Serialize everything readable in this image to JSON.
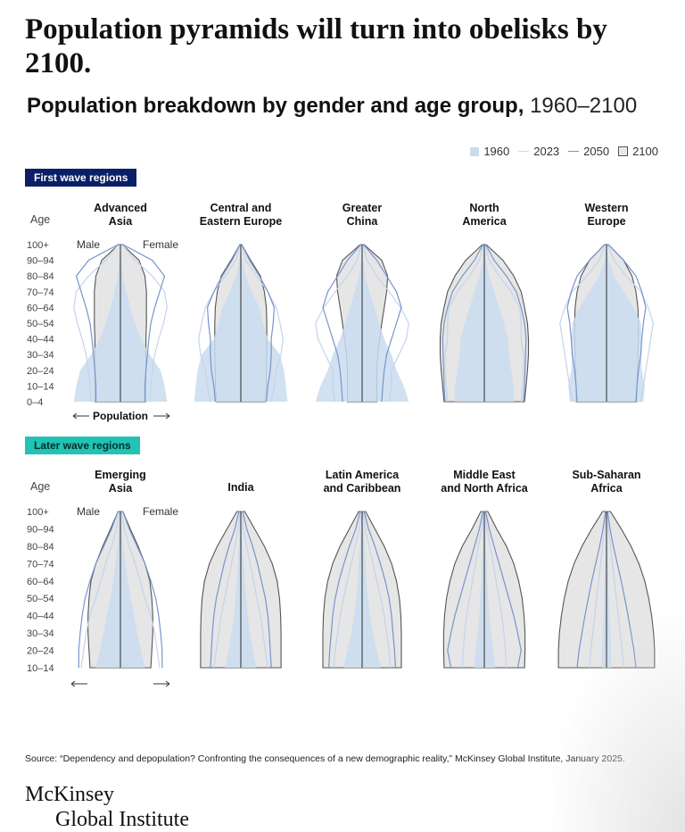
{
  "title": "Population pyramids will turn into obelisks by 2100.",
  "subtitle": {
    "main": "Population breakdown by gender and age group,",
    "range": "1960–2100"
  },
  "legend": [
    {
      "label": "1960",
      "style": "fill"
    },
    {
      "label": "2023",
      "style": "light-line"
    },
    {
      "label": "2050",
      "style": "line"
    },
    {
      "label": "2100",
      "style": "outlined-fill"
    }
  ],
  "colors": {
    "fill_1960": "#c9dcee",
    "line_2023": "#c3d4ec",
    "line_2050": "#7894cc",
    "fill_2100": "#e6e6e6",
    "outline_2100": "#555555",
    "center_axis": "#2b2b2b",
    "first_wave_badge": "#0a1f66",
    "later_wave_badge": "#22c3b4"
  },
  "sections": {
    "first": "First wave regions",
    "later": "Later wave regions"
  },
  "axis": {
    "age_label": "Age",
    "male": "Male",
    "female": "Female",
    "population": "Population"
  },
  "chart_data": {
    "type": "area",
    "description": "Mirrored population pyramids (male left, female right); values are shares of each region's largest bracket, read approximately",
    "age_groups": [
      "0–4",
      "10–14",
      "20–24",
      "30–34",
      "40–44",
      "50–54",
      "60–64",
      "70–74",
      "80–84",
      "90–94",
      "100+"
    ],
    "panels": [
      {
        "wave": "first",
        "region": [
          "Advanced",
          "Asia"
        ],
        "y1960": [
          0.95,
          0.9,
          0.82,
          0.6,
          0.42,
          0.3,
          0.2,
          0.12,
          0.05,
          0.02,
          0
        ],
        "y2023": [
          0.6,
          0.62,
          0.65,
          0.7,
          0.78,
          0.88,
          0.95,
          0.9,
          0.65,
          0.3,
          0.04
        ],
        "y2050": [
          0.5,
          0.5,
          0.52,
          0.55,
          0.58,
          0.62,
          0.7,
          0.8,
          0.9,
          0.65,
          0.05
        ],
        "y2100": [
          0.52,
          0.52,
          0.52,
          0.52,
          0.52,
          0.53,
          0.53,
          0.53,
          0.5,
          0.38,
          0.04
        ]
      },
      {
        "wave": "first",
        "region": [
          "Central and",
          "Eastern Europe"
        ],
        "y1960": [
          0.95,
          0.92,
          0.88,
          0.8,
          0.55,
          0.45,
          0.38,
          0.22,
          0.1,
          0.03,
          0
        ],
        "y2023": [
          0.62,
          0.68,
          0.72,
          0.82,
          0.86,
          0.8,
          0.72,
          0.55,
          0.32,
          0.1,
          0.02
        ],
        "y2050": [
          0.52,
          0.55,
          0.6,
          0.62,
          0.62,
          0.66,
          0.68,
          0.55,
          0.38,
          0.18,
          0.02
        ],
        "y2100": [
          0.5,
          0.52,
          0.52,
          0.53,
          0.53,
          0.53,
          0.52,
          0.48,
          0.4,
          0.2,
          0.02
        ]
      },
      {
        "wave": "first",
        "region": [
          "Greater",
          "China"
        ],
        "y1960": [
          0.95,
          0.85,
          0.7,
          0.6,
          0.45,
          0.35,
          0.25,
          0.15,
          0.06,
          0.02,
          0
        ],
        "y2023": [
          0.55,
          0.6,
          0.6,
          0.75,
          0.9,
          0.95,
          0.78,
          0.55,
          0.3,
          0.1,
          0.02
        ],
        "y2050": [
          0.4,
          0.42,
          0.45,
          0.5,
          0.6,
          0.7,
          0.8,
          0.7,
          0.5,
          0.3,
          0.03
        ],
        "y2100": [
          0.3,
          0.3,
          0.3,
          0.32,
          0.36,
          0.4,
          0.45,
          0.5,
          0.52,
          0.4,
          0.04
        ]
      },
      {
        "wave": "first",
        "region": [
          "North",
          "America"
        ],
        "y1960": [
          0.6,
          0.6,
          0.55,
          0.5,
          0.48,
          0.4,
          0.3,
          0.2,
          0.1,
          0.03,
          0
        ],
        "y2023": [
          0.75,
          0.78,
          0.8,
          0.8,
          0.75,
          0.75,
          0.72,
          0.55,
          0.3,
          0.1,
          0.02
        ],
        "y2050": [
          0.8,
          0.82,
          0.83,
          0.84,
          0.85,
          0.82,
          0.75,
          0.65,
          0.45,
          0.2,
          0.03
        ],
        "y2100": [
          0.82,
          0.85,
          0.88,
          0.9,
          0.9,
          0.88,
          0.82,
          0.75,
          0.6,
          0.38,
          0.04
        ]
      },
      {
        "wave": "first",
        "region": [
          "Western",
          "Europe"
        ],
        "y1960": [
          0.75,
          0.78,
          0.72,
          0.7,
          0.72,
          0.7,
          0.55,
          0.35,
          0.15,
          0.04,
          0
        ],
        "y2023": [
          0.7,
          0.75,
          0.8,
          0.85,
          0.9,
          0.95,
          0.85,
          0.7,
          0.4,
          0.15,
          0.02
        ],
        "y2050": [
          0.6,
          0.62,
          0.65,
          0.7,
          0.72,
          0.75,
          0.8,
          0.72,
          0.6,
          0.35,
          0.04
        ],
        "y2100": [
          0.62,
          0.62,
          0.63,
          0.64,
          0.65,
          0.65,
          0.64,
          0.6,
          0.52,
          0.35,
          0.04
        ]
      },
      {
        "wave": "later",
        "region": [
          "Emerging",
          "Asia"
        ],
        "y1960": [
          0.5,
          0.42,
          0.34,
          0.28,
          0.21,
          0.15,
          0.1,
          0.06,
          0.03,
          0.01
        ],
        "y2023": [
          0.8,
          0.75,
          0.7,
          0.62,
          0.5,
          0.4,
          0.3,
          0.18,
          0.08,
          0.02
        ],
        "y2050": [
          0.85,
          0.85,
          0.82,
          0.78,
          0.72,
          0.62,
          0.5,
          0.34,
          0.18,
          0.05
        ],
        "y2100": [
          0.62,
          0.64,
          0.66,
          0.66,
          0.64,
          0.6,
          0.5,
          0.36,
          0.2,
          0.05
        ]
      },
      {
        "wave": "later",
        "region": [
          "India"
        ],
        "y1960": [
          0.32,
          0.25,
          0.19,
          0.14,
          0.11,
          0.08,
          0.06,
          0.04,
          0.02,
          0.01
        ],
        "y2023": [
          0.55,
          0.5,
          0.45,
          0.4,
          0.33,
          0.26,
          0.19,
          0.12,
          0.05,
          0.02
        ],
        "y2050": [
          0.62,
          0.6,
          0.58,
          0.55,
          0.5,
          0.42,
          0.34,
          0.24,
          0.12,
          0.04
        ],
        "y2100": [
          0.82,
          0.82,
          0.82,
          0.81,
          0.79,
          0.74,
          0.64,
          0.48,
          0.28,
          0.08
        ]
      },
      {
        "wave": "later",
        "region": [
          "Latin America",
          "and Caribbean"
        ],
        "y1960": [
          0.38,
          0.3,
          0.22,
          0.16,
          0.12,
          0.09,
          0.07,
          0.05,
          0.02,
          0.01
        ],
        "y2023": [
          0.58,
          0.55,
          0.5,
          0.45,
          0.38,
          0.3,
          0.22,
          0.14,
          0.06,
          0.02
        ],
        "y2050": [
          0.68,
          0.66,
          0.63,
          0.6,
          0.55,
          0.47,
          0.37,
          0.26,
          0.13,
          0.04
        ],
        "y2100": [
          0.8,
          0.8,
          0.8,
          0.79,
          0.76,
          0.7,
          0.6,
          0.45,
          0.26,
          0.07
        ]
      },
      {
        "wave": "later",
        "region": [
          "Middle East",
          "and North Africa"
        ],
        "y1960": [
          0.22,
          0.18,
          0.14,
          0.1,
          0.08,
          0.06,
          0.05,
          0.03,
          0.02,
          0.01
        ],
        "y2023": [
          0.45,
          0.43,
          0.4,
          0.36,
          0.3,
          0.24,
          0.18,
          0.12,
          0.05,
          0.02
        ],
        "y2050": [
          0.68,
          0.75,
          0.68,
          0.6,
          0.5,
          0.4,
          0.3,
          0.2,
          0.1,
          0.03
        ],
        "y2100": [
          0.82,
          0.83,
          0.83,
          0.81,
          0.77,
          0.7,
          0.6,
          0.45,
          0.25,
          0.07
        ]
      },
      {
        "wave": "later",
        "region": [
          "Sub-Saharan",
          "Africa"
        ],
        "y1960": [
          0.1,
          0.09,
          0.08,
          0.06,
          0.05,
          0.04,
          0.03,
          0.02,
          0.01,
          0.005
        ],
        "y2023": [
          0.35,
          0.32,
          0.28,
          0.24,
          0.2,
          0.16,
          0.12,
          0.08,
          0.04,
          0.01
        ],
        "y2050": [
          0.6,
          0.56,
          0.5,
          0.44,
          0.37,
          0.3,
          0.22,
          0.14,
          0.07,
          0.02
        ],
        "y2100": [
          0.98,
          0.98,
          0.96,
          0.92,
          0.86,
          0.78,
          0.66,
          0.5,
          0.3,
          0.08
        ]
      }
    ],
    "later_age_groups": [
      "10–14",
      "20–24",
      "30–34",
      "40–44",
      "50–54",
      "60–64",
      "70–74",
      "80–84",
      "90–94",
      "100+"
    ]
  },
  "source": "Source: “Dependency and depopulation? Confronting the consequences of a new demographic reality,” McKinsey Global Institute, January 2025.",
  "logo": {
    "line1": "McKinsey",
    "line2": "Global Institute"
  }
}
